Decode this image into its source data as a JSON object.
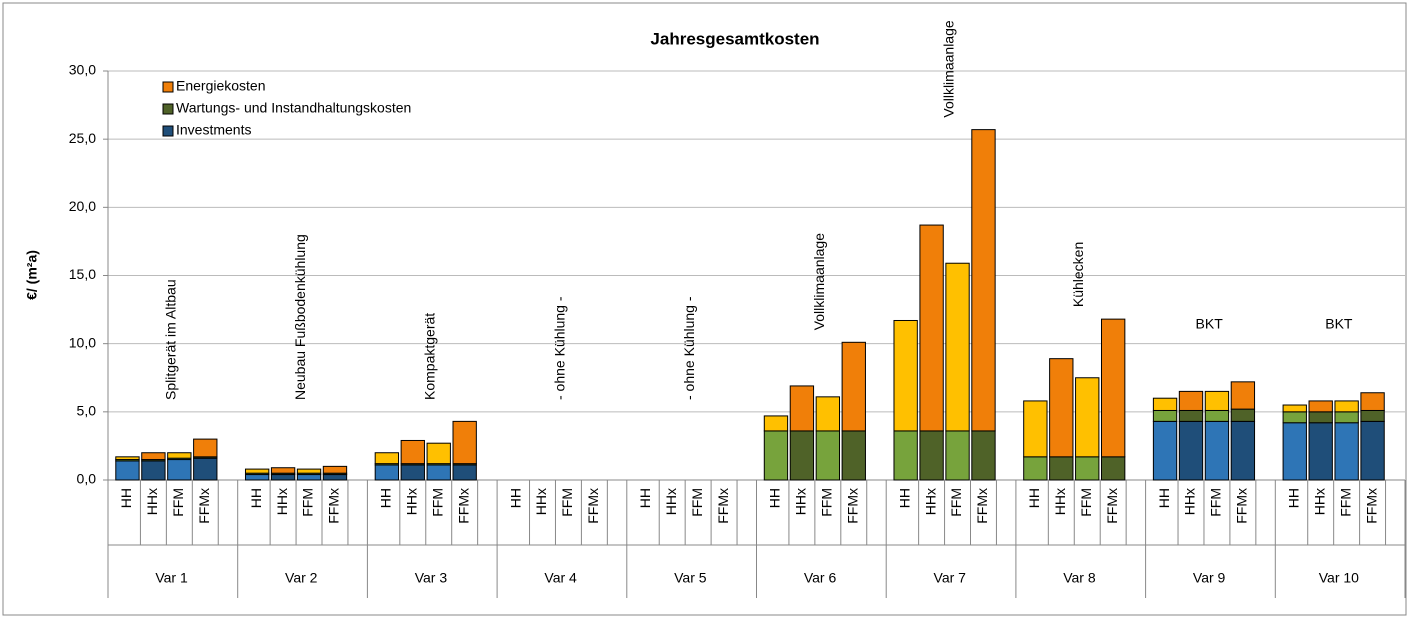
{
  "chart_data": {
    "type": "stacked_bar",
    "title": "Jahresgesamtkosten",
    "y_label": "€/ (m²a)",
    "categories": [
      "HH",
      "HHx",
      "FFM",
      "FFMx",
      "HH",
      "HHx",
      "FFM",
      "FFMx",
      "HH",
      "HHx",
      "FFM",
      "FFMx",
      "HH",
      "HHx",
      "FFM",
      "FFMx",
      "HH",
      "HHx",
      "FFM",
      "FFMx",
      "HH",
      "HHx",
      "FFM",
      "FFMx",
      "HH",
      "HHx",
      "FFM",
      "FFMx",
      "HH",
      "HHx",
      "FFM",
      "FFMx",
      "HH",
      "HHx",
      "FFM",
      "FFMx",
      "HH",
      "HHx",
      "FFM",
      "FFMx"
    ],
    "groups": [
      "Var 1",
      "Var 2",
      "Var 3",
      "Var 4",
      "Var 5",
      "Var 6",
      "Var 7",
      "Var 8",
      "Var 9",
      "Var 10"
    ],
    "annotations": [
      {
        "text": "Splitgerät im Altbau",
        "rotated": true
      },
      {
        "text": "Neubau Fußbodenkühlung",
        "rotated": true
      },
      {
        "text": "Kompaktgerät",
        "rotated": true
      },
      {
        "text": "- ohne Kühlung -",
        "rotated": true
      },
      {
        "text": "- ohne Kühlung -",
        "rotated": true
      },
      {
        "text": "Vollklimaanlage",
        "rotated": true
      },
      {
        "text": "Vollklimaanlage",
        "rotated": true
      },
      {
        "text": "Kühlecken",
        "rotated": true
      },
      {
        "text": "BKT",
        "rotated": false
      },
      {
        "text": "BKT",
        "rotated": false
      }
    ],
    "series": [
      {
        "name": "Investments",
        "color": "#1f4e79",
        "light_color": "#2e75b6",
        "values": [
          1.4,
          1.4,
          1.5,
          1.6,
          0.4,
          0.4,
          0.4,
          0.4,
          1.1,
          1.1,
          1.1,
          1.1,
          0,
          0,
          0,
          0,
          0,
          0,
          0,
          0,
          0,
          0,
          0,
          0,
          0,
          0,
          0,
          0,
          0,
          0,
          0,
          0,
          4.3,
          4.3,
          4.3,
          4.3,
          4.2,
          4.2,
          4.2,
          4.3
        ]
      },
      {
        "name": "Wartungs- und Instandhaltungskosten",
        "color": "#4f6228",
        "light_color": "#77a33c",
        "values": [
          0.1,
          0.1,
          0.1,
          0.1,
          0.1,
          0.1,
          0.1,
          0.1,
          0.1,
          0.1,
          0.1,
          0.1,
          0,
          0,
          0,
          0,
          0,
          0,
          0,
          0,
          3.6,
          3.6,
          3.6,
          3.6,
          3.6,
          3.6,
          3.6,
          3.6,
          1.7,
          1.7,
          1.7,
          1.7,
          0.8,
          0.8,
          0.8,
          0.9,
          0.8,
          0.8,
          0.8,
          0.8
        ]
      },
      {
        "name": "Energiekosten",
        "color": "#f07f09",
        "light_color": "#ffc000",
        "values": [
          0.2,
          0.5,
          0.4,
          1.3,
          0.3,
          0.4,
          0.3,
          0.5,
          0.8,
          1.7,
          1.5,
          3.1,
          0,
          0,
          0,
          0,
          0,
          0,
          0,
          0,
          1.1,
          3.3,
          2.5,
          6.5,
          8.1,
          15.1,
          12.3,
          22.1,
          4.1,
          7.2,
          5.8,
          10.1,
          0.9,
          1.4,
          1.4,
          2.0,
          0.5,
          0.8,
          0.8,
          1.3
        ]
      }
    ],
    "legend_order": [
      2,
      1,
      0
    ],
    "ylim": [
      0,
      30
    ],
    "yticks": [
      {
        "value": 0,
        "label": "0,0"
      },
      {
        "value": 5,
        "label": "5,0"
      },
      {
        "value": 10,
        "label": "10,0"
      },
      {
        "value": 15,
        "label": "15,0"
      },
      {
        "value": 20,
        "label": "20,0"
      },
      {
        "value": 25,
        "label": "25,0"
      },
      {
        "value": 30,
        "label": "30,0"
      }
    ],
    "grid": true
  }
}
